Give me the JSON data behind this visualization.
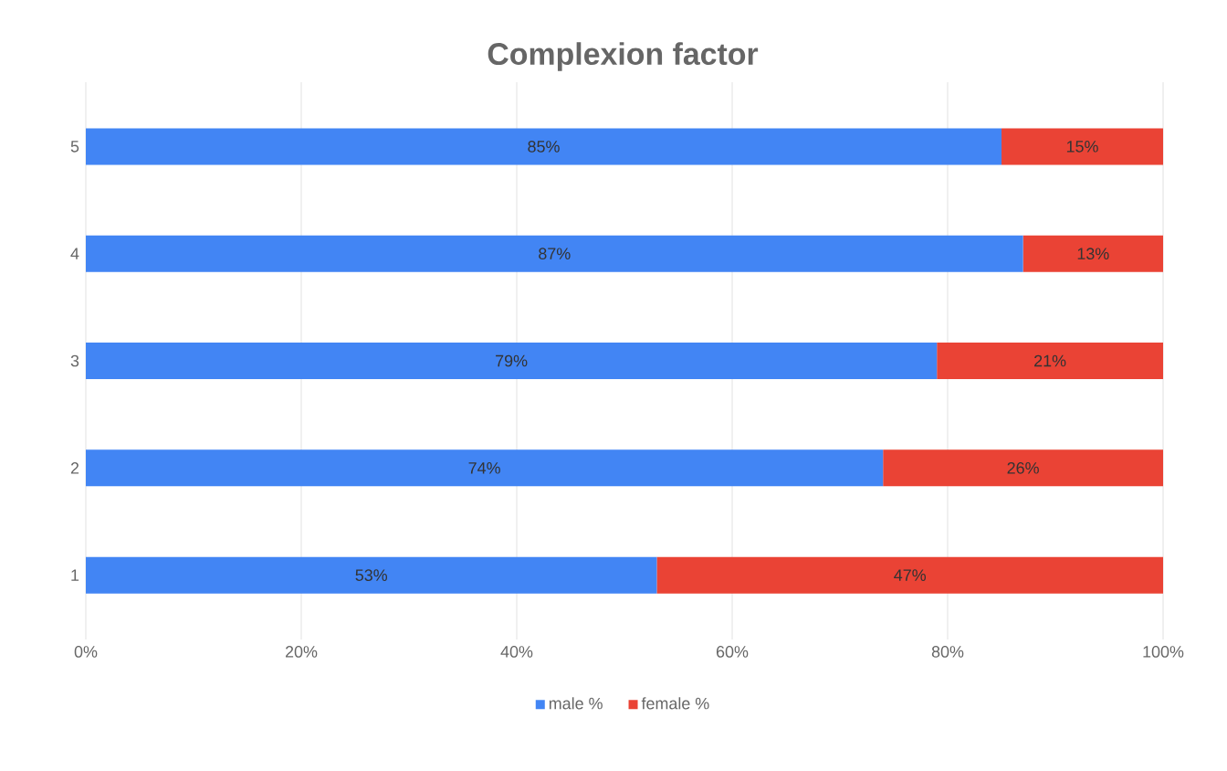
{
  "chart_data": {
    "type": "bar",
    "orientation": "horizontal",
    "stacked": true,
    "title": "Complexion factor",
    "categories": [
      "5",
      "4",
      "3",
      "2",
      "1"
    ],
    "series": [
      {
        "name": "male %",
        "color": "#4285f4",
        "values": [
          85,
          87,
          79,
          74,
          53
        ],
        "value_labels": [
          "85%",
          "87%",
          "79%",
          "74%",
          "53%"
        ]
      },
      {
        "name": "female %",
        "color": "#ea4335",
        "values": [
          15,
          13,
          21,
          26,
          47
        ],
        "value_labels": [
          "15%",
          "13%",
          "21%",
          "26%",
          "47%"
        ]
      }
    ],
    "xlim": [
      0,
      100
    ],
    "xticks": [
      {
        "value": 0,
        "label": "0%"
      },
      {
        "value": 20,
        "label": "20%"
      },
      {
        "value": 40,
        "label": "40%"
      },
      {
        "value": 60,
        "label": "60%"
      },
      {
        "value": 80,
        "label": "80%"
      },
      {
        "value": 100,
        "label": "100%"
      }
    ],
    "grid": "x",
    "legend": "bottom"
  }
}
